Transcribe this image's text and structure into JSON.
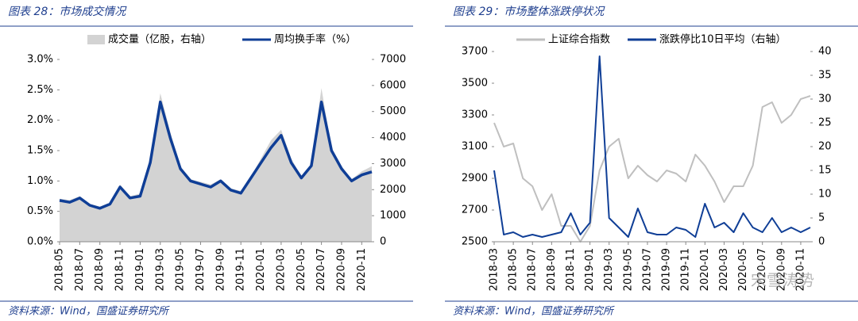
{
  "chart_data": [
    {
      "type": "line",
      "title": "图表 28：市场成交情况",
      "source": "资料来源：Wind，国盛证券研究所",
      "categories": [
        "2018-05",
        null,
        "2018-07",
        null,
        "2018-09",
        null,
        "2018-11",
        null,
        "2019-01",
        null,
        "2019-03",
        null,
        "2019-05",
        null,
        "2019-07",
        null,
        "2019-09",
        null,
        "2019-11",
        null,
        "2020-01",
        null,
        "2020-03",
        null,
        "2020-05",
        null,
        "2020-07",
        null,
        "2020-09",
        null,
        "2020-11",
        null
      ],
      "ylim": [
        0,
        3.0
      ],
      "yticks": [
        {
          "value": 0,
          "label": "0.0%"
        },
        {
          "value": 0.5,
          "label": "0.5%"
        },
        {
          "value": 1.0,
          "label": "1.0%"
        },
        {
          "value": 1.5,
          "label": "1.5%"
        },
        {
          "value": 2.0,
          "label": "2.0%"
        },
        {
          "value": 2.5,
          "label": "2.5%"
        },
        {
          "value": 3.0,
          "label": "3.0%"
        }
      ],
      "y2lim": [
        0,
        7000
      ],
      "y2ticks": [
        0,
        1000,
        2000,
        3000,
        4000,
        5000,
        6000,
        7000
      ],
      "series": [
        {
          "name": "成交量（亿股，右轴）",
          "color": "#d3d3d3",
          "kind": "area",
          "axis": "y2",
          "values": [
            1650,
            1600,
            1750,
            1450,
            1350,
            1500,
            2200,
            1750,
            1850,
            3200,
            5700,
            4200,
            2900,
            2400,
            2300,
            2200,
            2400,
            2050,
            1950,
            2500,
            3200,
            3900,
            4300,
            3200,
            2500,
            3000,
            5900,
            3600,
            2900,
            2400,
            2700,
            2900
          ]
        },
        {
          "name": "周均换手率（%）",
          "color": "#0f3e96",
          "kind": "line",
          "axis": "y",
          "values": [
            0.68,
            0.65,
            0.72,
            0.6,
            0.55,
            0.62,
            0.9,
            0.72,
            0.75,
            1.3,
            2.3,
            1.7,
            1.2,
            1.0,
            0.95,
            0.9,
            1.0,
            0.85,
            0.8,
            1.05,
            1.3,
            1.55,
            1.75,
            1.3,
            1.05,
            1.25,
            2.3,
            1.5,
            1.2,
            1.0,
            1.1,
            1.15
          ]
        }
      ]
    },
    {
      "type": "line",
      "title": "图表 29：市场整体涨跌停状况",
      "source": "资料来源：Wind，国盛证券研究所",
      "categories": [
        "2018-03",
        null,
        "2018-05",
        null,
        "2018-07",
        null,
        "2018-09",
        null,
        "2018-11",
        null,
        "2019-01",
        null,
        "2019-03",
        null,
        "2019-05",
        null,
        "2019-07",
        null,
        "2019-09",
        null,
        "2019-11",
        null,
        "2020-01",
        null,
        "2020-03",
        null,
        "2020-05",
        null,
        "2020-07",
        null,
        "2020-09",
        null,
        "2020-11",
        null
      ],
      "ylim": [
        2500,
        3700
      ],
      "yticks": [
        2500,
        2700,
        2900,
        3100,
        3300,
        3500,
        3700
      ],
      "y2lim": [
        0,
        40
      ],
      "y2ticks": [
        0,
        5,
        10,
        15,
        20,
        25,
        30,
        35,
        40
      ],
      "series": [
        {
          "name": "上证综合指数",
          "color": "#bfbfbf",
          "kind": "line",
          "axis": "y",
          "values": [
            3250,
            3100,
            3120,
            2900,
            2850,
            2700,
            2800,
            2600,
            2600,
            2500,
            2600,
            2950,
            3100,
            3150,
            2900,
            2980,
            2920,
            2880,
            2950,
            2930,
            2880,
            3050,
            2980,
            2880,
            2750,
            2850,
            2850,
            2980,
            3350,
            3380,
            3250,
            3300,
            3400,
            3420
          ]
        },
        {
          "name": "涨跌停比10日平均（右轴）",
          "color": "#0f3e96",
          "kind": "line",
          "axis": "y2",
          "values": [
            15,
            1.5,
            2,
            1,
            1.5,
            1,
            1.5,
            2,
            6,
            1.5,
            4,
            39,
            5,
            3,
            1,
            7,
            2,
            1.5,
            1.5,
            3,
            2.5,
            1,
            8,
            3,
            4,
            2,
            6,
            3,
            2,
            5,
            2,
            3,
            2,
            3
          ]
        }
      ]
    }
  ],
  "watermark": "宋雪涛势"
}
